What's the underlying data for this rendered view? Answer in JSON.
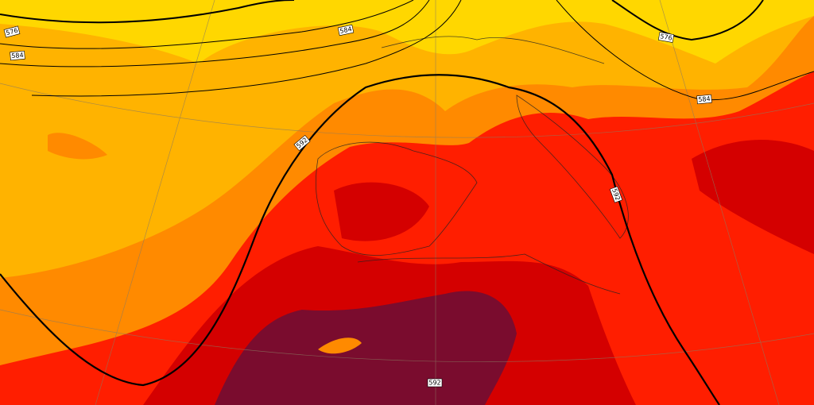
{
  "map": {
    "contour_labels": [
      "576",
      "584",
      "584",
      "576",
      "584",
      "592",
      "592",
      "592"
    ]
  }
}
